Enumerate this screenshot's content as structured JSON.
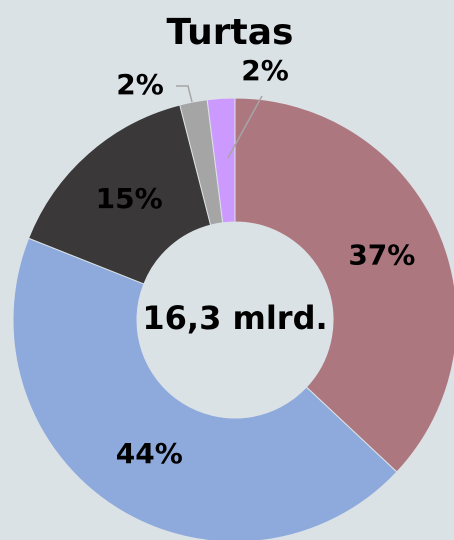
{
  "chart_data": {
    "type": "donut",
    "title": "Turtas",
    "center_label": "16,3 mlrd.",
    "values": [
      37,
      44,
      15,
      2,
      2
    ],
    "value_labels": [
      "37%",
      "44%",
      "15%",
      "2%",
      "2%"
    ],
    "colors": [
      "#ad777f",
      "#8eaadc",
      "#3a3838",
      "#a5a5a5",
      "#cc99ff"
    ]
  }
}
